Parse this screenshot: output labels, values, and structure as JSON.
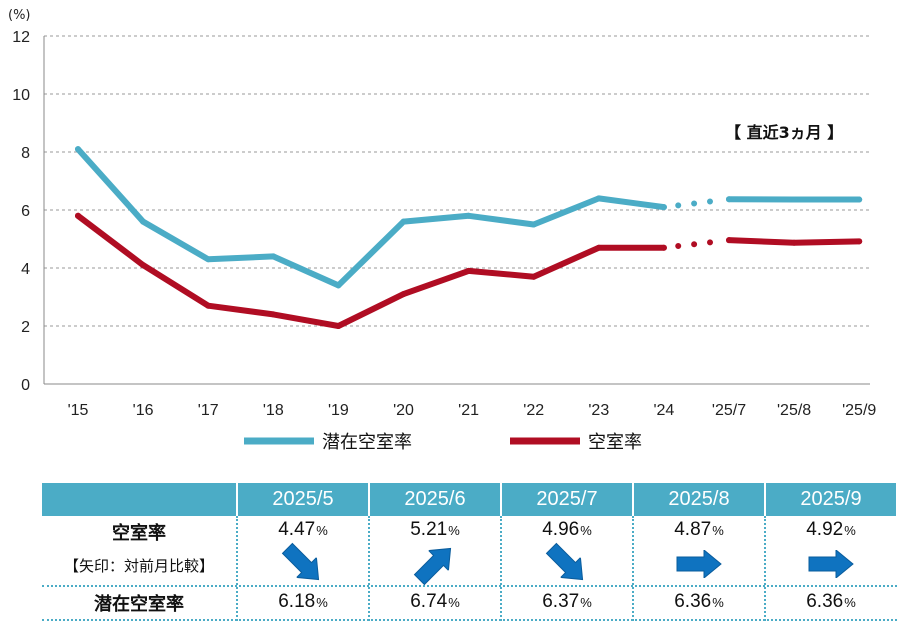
{
  "chart_data": {
    "type": "line",
    "categories": [
      "'15",
      "'16",
      "'17",
      "'18",
      "'19",
      "'20",
      "'21",
      "'22",
      "'23",
      "'24",
      "'25/7",
      "'25/8",
      "'25/9"
    ],
    "series": [
      {
        "name": "潜在空室率",
        "color": "#4bacc6",
        "values": [
          8.1,
          5.6,
          4.3,
          4.4,
          3.4,
          5.6,
          5.8,
          5.5,
          6.4,
          6.1,
          6.37,
          6.36,
          6.36
        ]
      },
      {
        "name": "空室率",
        "color": "#b00d23",
        "values": [
          5.8,
          4.1,
          2.7,
          2.4,
          2.0,
          3.1,
          3.9,
          3.7,
          4.7,
          4.7,
          4.96,
          4.87,
          4.92
        ]
      }
    ],
    "yticks": [
      "0",
      "2",
      "4",
      "6",
      "8",
      "10",
      "12"
    ],
    "ylim": [
      0,
      12
    ],
    "yunit": "(%)",
    "dotted_gap_after": "'24",
    "callout": "【 直近3ヵ月 】",
    "grid": true,
    "legend": [
      {
        "label": "潜在空室率",
        "color": "#4bacc6"
      },
      {
        "label": "空室率",
        "color": "#b00d23"
      }
    ]
  },
  "summary_table": {
    "headers": [
      "2025/5",
      "2025/6",
      "2025/7",
      "2025/8",
      "2025/9"
    ],
    "row_vacancy": {
      "label": "空室率",
      "values": [
        "4.47",
        "5.21",
        "4.96",
        "4.87",
        "4.92"
      ],
      "unit": "%"
    },
    "row_arrow": {
      "label": "【矢印：対前月比較】",
      "directions": [
        "down",
        "up",
        "down",
        "flat",
        "flat"
      ]
    },
    "row_potential": {
      "label": "潜在空室率",
      "values": [
        "6.18",
        "6.74",
        "6.37",
        "6.36",
        "6.36"
      ],
      "unit": "%"
    }
  }
}
